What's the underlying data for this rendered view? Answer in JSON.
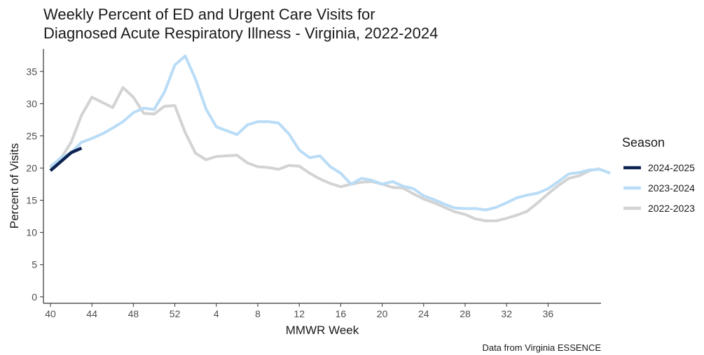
{
  "chart_data": {
    "type": "line",
    "title_lines": [
      "Weekly Percent of ED and Urgent Care Visits for",
      "Diagnosed Acute Respiratory Illness - Virginia, 2022-2024"
    ],
    "xlabel": "MMWR Week",
    "ylabel": "Percent of Visits",
    "caption": "Data from Virginia ESSENCE",
    "x_tick_labels": [
      "40",
      "44",
      "48",
      "52",
      "4",
      "8",
      "12",
      "16",
      "20",
      "24",
      "28",
      "32",
      "36"
    ],
    "y_ticks": [
      0,
      5,
      10,
      15,
      20,
      25,
      30,
      35
    ],
    "ylim": [
      -1,
      38.5
    ],
    "legend": {
      "title": "Season",
      "position": "right"
    },
    "grid": false,
    "series": [
      {
        "name": "2022-2023",
        "color": "#d3d3d3",
        "values": [
          20.0,
          21.5,
          24.0,
          28.2,
          31.0,
          30.2,
          29.4,
          32.5,
          31.0,
          28.5,
          28.4,
          29.6,
          29.7,
          25.5,
          22.3,
          21.3,
          21.8,
          21.9,
          22.0,
          20.8,
          20.2,
          20.1,
          19.8,
          20.4,
          20.3,
          19.2,
          18.3,
          17.6,
          17.1,
          17.5,
          17.8,
          17.9,
          17.5,
          17.0,
          16.9,
          16.0,
          15.2,
          14.6,
          13.9,
          13.2,
          12.8,
          12.1,
          11.8,
          11.8,
          12.2,
          12.7,
          13.3,
          14.6,
          16.0,
          17.3,
          18.4,
          18.8,
          19.6,
          19.9
        ]
      },
      {
        "name": "2023-2024",
        "color": "#b9dcf7",
        "values": [
          20.2,
          21.6,
          22.4,
          24.0,
          24.6,
          25.3,
          26.2,
          27.2,
          28.6,
          29.3,
          29.1,
          31.8,
          36.0,
          37.4,
          33.8,
          29.2,
          26.4,
          25.8,
          25.2,
          26.7,
          27.2,
          27.2,
          27.0,
          25.3,
          22.8,
          21.6,
          21.9,
          20.2,
          19.2,
          17.5,
          18.4,
          18.1,
          17.5,
          17.9,
          17.2,
          16.8,
          15.7,
          15.1,
          14.4,
          13.8,
          13.7,
          13.7,
          13.5,
          13.9,
          14.6,
          15.4,
          15.8,
          16.1,
          16.8,
          17.9,
          19.1,
          19.3,
          19.7,
          19.8,
          19.2
        ]
      },
      {
        "name": "2024-2025",
        "color": "#0d2352",
        "values": [
          19.6,
          21.0,
          22.4,
          23.1
        ]
      }
    ]
  }
}
